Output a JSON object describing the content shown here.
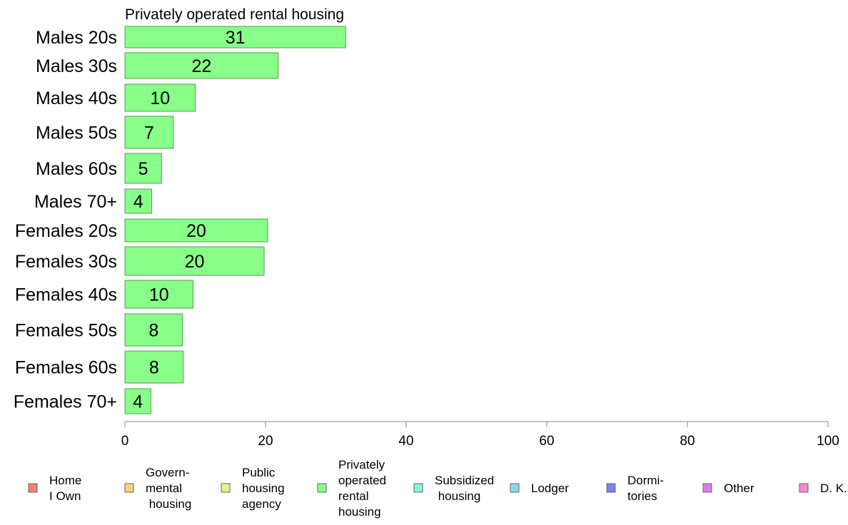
{
  "chart_data": {
    "type": "bar",
    "orientation": "horizontal",
    "title": "Privately operated rental housing",
    "categories": [
      "Males 20s",
      "Males 30s",
      "Males 40s",
      "Males 50s",
      "Males 60s",
      "Males 70+",
      "Females 20s",
      "Females 30s",
      "Females 40s",
      "Females 50s",
      "Females 60s",
      "Females 70+"
    ],
    "values": [
      31.4,
      21.8,
      10,
      6.9,
      5.2,
      3.8,
      20.3,
      19.8,
      9.7,
      8.2,
      8.3,
      3.7
    ],
    "labels": [
      "31",
      "22",
      "10",
      "7",
      "5",
      "4",
      "20",
      "20",
      "10",
      "8",
      "8",
      "4"
    ],
    "xlim": [
      0,
      100
    ],
    "xticks": [
      "0",
      "20",
      "40",
      "60",
      "80",
      "100"
    ],
    "bar_color": "#88ff88",
    "legend_position": "bottom",
    "legend": [
      {
        "lines": [
          "Home",
          "I Own"
        ],
        "color": "#f08080"
      },
      {
        "lines": [
          "Govern-",
          "mental",
          " housing"
        ],
        "color": "#ffd27f"
      },
      {
        "lines": [
          "Public",
          "housing",
          "agency"
        ],
        "color": "#e0f58a"
      },
      {
        "lines": [
          "Privately",
          "operated",
          "rental",
          "housing"
        ],
        "color": "#88ff88"
      },
      {
        "lines": [
          "Subsidized",
          " housing"
        ],
        "color": "#7fffd4"
      },
      {
        "lines": [
          "Lodger"
        ],
        "color": "#87d8f0"
      },
      {
        "lines": [
          "Dormi-",
          "tories"
        ],
        "color": "#8080f0"
      },
      {
        "lines": [
          "Other"
        ],
        "color": "#d87ff0"
      },
      {
        "lines": [
          "D. K."
        ],
        "color": "#f888d0"
      }
    ]
  }
}
